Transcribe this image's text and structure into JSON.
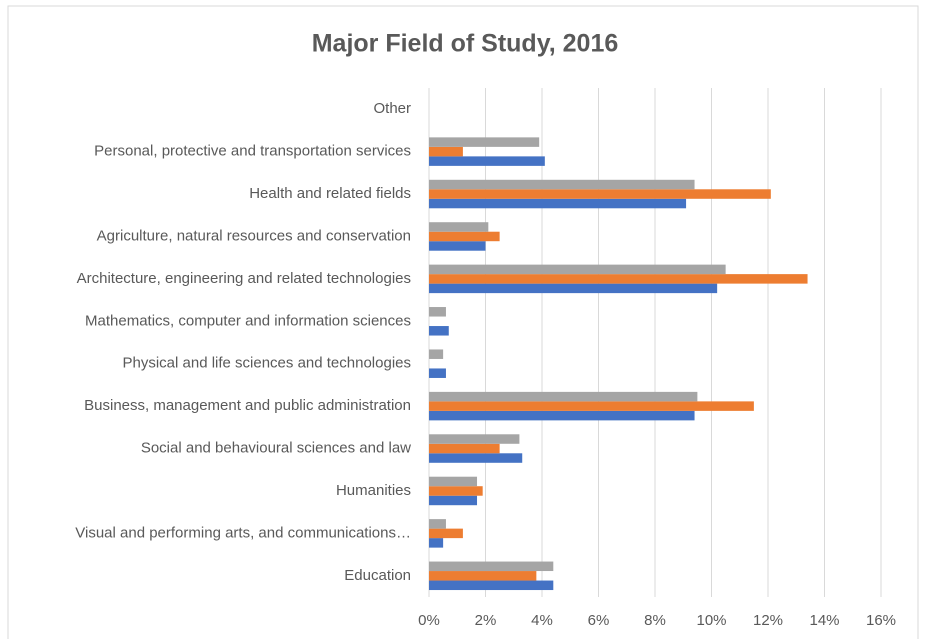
{
  "chart_data": {
    "type": "hbar",
    "title": "Major Field of Study, 2016",
    "categories": [
      "Education",
      "Visual and performing arts, and communications…",
      "Humanities",
      "Social and behavioural sciences and law",
      "Business, management and public administration",
      "Physical and life sciences and technologies",
      "Mathematics, computer and information sciences",
      "Architecture, engineering and related technologies",
      "Agriculture, natural resources and conservation",
      "Health and related fields",
      "Personal, protective and transportation services",
      "Other"
    ],
    "series": [
      {
        "color": "#4472c4",
        "values": [
          4.4,
          0.5,
          1.7,
          3.3,
          9.4,
          0.6,
          0.7,
          10.2,
          2.0,
          9.1,
          4.1,
          0
        ]
      },
      {
        "color": "#ed7d31",
        "values": [
          3.8,
          1.2,
          1.9,
          2.5,
          11.5,
          0,
          0,
          13.4,
          2.5,
          12.1,
          1.2,
          0
        ]
      },
      {
        "color": "#a5a5a5",
        "values": [
          4.4,
          0.6,
          1.7,
          3.2,
          9.5,
          0.5,
          0.6,
          10.5,
          2.1,
          9.4,
          3.9,
          0
        ]
      }
    ],
    "xlim": [
      0,
      16
    ],
    "xticks": [
      {
        "value": 0,
        "label": "0%"
      },
      {
        "value": 2,
        "label": "2%"
      },
      {
        "value": 4,
        "label": "4%"
      },
      {
        "value": 6,
        "label": "6%"
      },
      {
        "value": 8,
        "label": "8%"
      },
      {
        "value": 10,
        "label": "10%"
      },
      {
        "value": 12,
        "label": "12%"
      },
      {
        "value": 14,
        "label": "14%"
      },
      {
        "value": 16,
        "label": "16%"
      }
    ],
    "grid": true
  }
}
